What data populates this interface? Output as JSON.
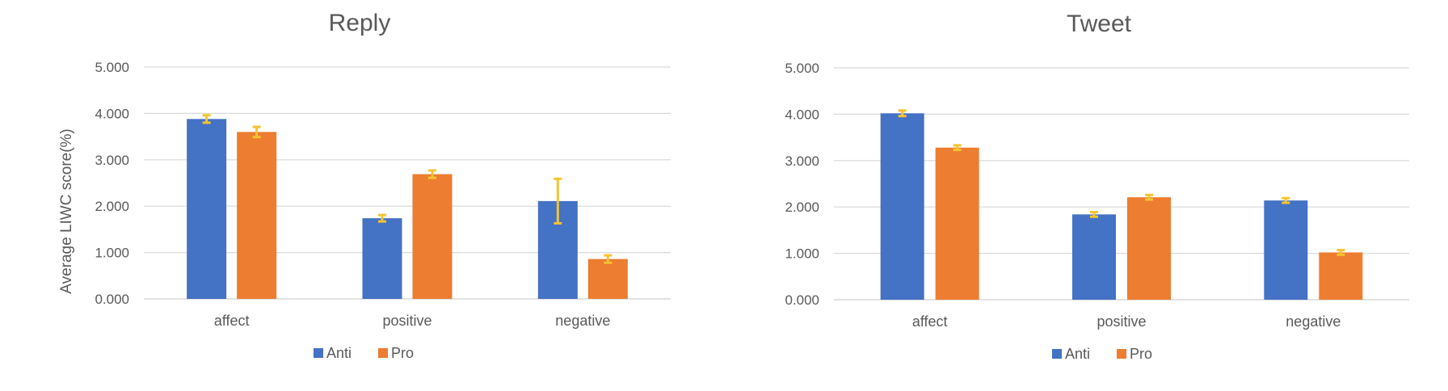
{
  "colors": {
    "anti": "#4472C4",
    "pro": "#ED7D31",
    "error": "#F4C430",
    "grid": "#D9D9D9",
    "text": "#595959"
  },
  "chart_data": [
    {
      "type": "bar",
      "title": "Reply",
      "ylabel": "Average  LIWC score(%)",
      "xlabel": "",
      "categories": [
        "affect",
        "positive",
        "negative"
      ],
      "yticks": [
        "0.000",
        "1.000",
        "2.000",
        "3.000",
        "4.000",
        "5.000"
      ],
      "ylim": [
        0,
        5
      ],
      "grid": true,
      "legend": "bottom",
      "series": [
        {
          "name": "Anti",
          "values": [
            3.88,
            1.74,
            2.11
          ],
          "errors": [
            0.08,
            0.07,
            0.48
          ]
        },
        {
          "name": "Pro",
          "values": [
            3.6,
            2.69,
            0.86
          ],
          "errors": [
            0.11,
            0.08,
            0.08
          ]
        }
      ]
    },
    {
      "type": "bar",
      "title": "Tweet",
      "ylabel": "",
      "xlabel": "",
      "categories": [
        "affect",
        "positive",
        "negative"
      ],
      "yticks": [
        "0.000",
        "1.000",
        "2.000",
        "3.000",
        "4.000",
        "5.000"
      ],
      "ylim": [
        0,
        5
      ],
      "grid": true,
      "legend": "bottom",
      "series": [
        {
          "name": "Anti",
          "values": [
            4.02,
            1.84,
            2.14
          ],
          "errors": [
            0.06,
            0.05,
            0.05
          ]
        },
        {
          "name": "Pro",
          "values": [
            3.28,
            2.21,
            1.02
          ],
          "errors": [
            0.05,
            0.05,
            0.05
          ]
        }
      ]
    }
  ]
}
